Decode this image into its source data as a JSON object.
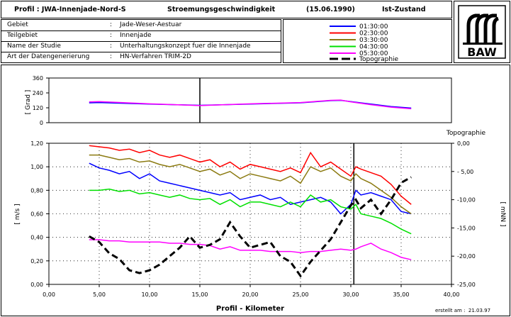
{
  "header": {
    "profil": "Profil : JWA-Innenjade-Nord-S",
    "title": "Stroemungsgeschwindigkeit",
    "date": "(15.06.1990)",
    "state": "Ist-Zustand"
  },
  "info": {
    "rows": [
      {
        "label": "Gebiet",
        "value": "Jade-Weser-Aestuar"
      },
      {
        "label": "Teilgebiet",
        "value": "Innenjade"
      },
      {
        "label": "Name der Studie",
        "value": "Unterhaltungskonzept fuer die Innenjade"
      },
      {
        "label": "Art der Datengenerierung",
        "value": "HN-Verfahren TRIM-2D"
      }
    ],
    "sep": ":"
  },
  "logo": {
    "text": "BAW"
  },
  "footer": {
    "created": "erstellt am :  21.03.97"
  },
  "colors": {
    "s0130": "#0000ff",
    "s0230": "#ff0000",
    "s0330": "#8b7a10",
    "s0430": "#00e000",
    "s0530": "#ff00ff",
    "topo": "#000000"
  },
  "chart_data": [
    {
      "type": "line",
      "id": "direction",
      "ylabel": "[ Grad ]",
      "ylim": [
        0,
        360
      ],
      "yticks": [
        "0",
        "120",
        "240",
        "360"
      ],
      "xlim": [
        0,
        40
      ],
      "series": [
        {
          "name": "01:30:00",
          "x": [
            4,
            5,
            10,
            15,
            20,
            25,
            28,
            29,
            30,
            32,
            34,
            36
          ],
          "y": [
            160,
            162,
            150,
            140,
            150,
            160,
            178,
            180,
            170,
            150,
            130,
            118
          ]
        },
        {
          "name": "05:30:00",
          "x": [
            4,
            5,
            10,
            15,
            20,
            25,
            28,
            29,
            30,
            32,
            34,
            36
          ],
          "y": [
            168,
            170,
            152,
            138,
            152,
            162,
            180,
            182,
            168,
            145,
            125,
            112
          ]
        }
      ]
    },
    {
      "type": "line",
      "id": "velocity",
      "xlabel": "Profil - Kilometer",
      "ylabel": "[ m/s ]",
      "ylabel_right": "[ mNN ]",
      "right_title": "Topographie",
      "xlim": [
        0,
        40
      ],
      "ylim": [
        0,
        1.2
      ],
      "ylim_right": [
        -25,
        0
      ],
      "xticks": [
        "0,00",
        "5,00",
        "10,00",
        "15,00",
        "20,00",
        "25,00",
        "30,00",
        "35,00",
        "40,00"
      ],
      "yticks": [
        "0,00",
        "0,20",
        "0,40",
        "0,60",
        "0,80",
        "1,00",
        "1,20"
      ],
      "yticks_right": [
        "-25,00",
        "-20,00",
        "-15,00",
        "-10,00",
        "- 5,00",
        "0,00"
      ],
      "legend": {
        "position": "top-right"
      },
      "series": [
        {
          "name": "01:30:00",
          "x": [
            4,
            5,
            6,
            7,
            8,
            9,
            10,
            11,
            12,
            13,
            14,
            15,
            16,
            17,
            18,
            19,
            20,
            21,
            22,
            23,
            24,
            25,
            26,
            27,
            28,
            29,
            30,
            30.5,
            31,
            32,
            33,
            34,
            35,
            36
          ],
          "y": [
            1.03,
            0.99,
            0.97,
            0.94,
            0.96,
            0.9,
            0.94,
            0.88,
            0.86,
            0.84,
            0.82,
            0.8,
            0.78,
            0.76,
            0.78,
            0.72,
            0.74,
            0.76,
            0.72,
            0.74,
            0.68,
            0.7,
            0.72,
            0.74,
            0.7,
            0.6,
            0.68,
            0.8,
            0.76,
            0.78,
            0.75,
            0.72,
            0.62,
            0.6
          ]
        },
        {
          "name": "02:30:00",
          "x": [
            4,
            5,
            6,
            7,
            8,
            9,
            10,
            11,
            12,
            13,
            14,
            15,
            16,
            17,
            18,
            19,
            20,
            21,
            22,
            23,
            24,
            25,
            26,
            27,
            28,
            29,
            30,
            30.5,
            31,
            32,
            33,
            34,
            35,
            36
          ],
          "y": [
            1.18,
            1.17,
            1.16,
            1.14,
            1.15,
            1.12,
            1.14,
            1.1,
            1.08,
            1.1,
            1.07,
            1.04,
            1.06,
            1.0,
            1.04,
            0.98,
            1.02,
            1.0,
            0.98,
            0.96,
            0.99,
            0.95,
            1.12,
            1.0,
            1.04,
            0.98,
            0.92,
            1.0,
            0.98,
            0.95,
            0.92,
            0.85,
            0.75,
            0.68
          ]
        },
        {
          "name": "03:30:00",
          "x": [
            4,
            5,
            6,
            7,
            8,
            9,
            10,
            11,
            12,
            13,
            14,
            15,
            16,
            17,
            18,
            19,
            20,
            21,
            22,
            23,
            24,
            25,
            26,
            27,
            28,
            29,
            30,
            30.5,
            31,
            32,
            33,
            34,
            35,
            36
          ],
          "y": [
            1.1,
            1.1,
            1.08,
            1.06,
            1.07,
            1.04,
            1.05,
            1.02,
            1.0,
            1.02,
            0.99,
            0.96,
            0.98,
            0.93,
            0.96,
            0.9,
            0.94,
            0.92,
            0.9,
            0.88,
            0.92,
            0.86,
            1.0,
            0.96,
            0.99,
            0.92,
            0.88,
            0.94,
            0.9,
            0.86,
            0.8,
            0.74,
            0.66,
            0.6
          ]
        },
        {
          "name": "04:30:00",
          "x": [
            4,
            5,
            6,
            7,
            8,
            9,
            10,
            11,
            12,
            13,
            14,
            15,
            16,
            17,
            18,
            19,
            20,
            21,
            22,
            23,
            24,
            25,
            26,
            27,
            28,
            29,
            30,
            30.5,
            31,
            32,
            33,
            34,
            35,
            36
          ],
          "y": [
            0.8,
            0.8,
            0.81,
            0.79,
            0.8,
            0.77,
            0.78,
            0.76,
            0.74,
            0.76,
            0.73,
            0.72,
            0.73,
            0.68,
            0.72,
            0.66,
            0.7,
            0.7,
            0.68,
            0.66,
            0.7,
            0.66,
            0.76,
            0.7,
            0.72,
            0.66,
            0.64,
            0.68,
            0.6,
            0.58,
            0.56,
            0.52,
            0.47,
            0.43
          ]
        },
        {
          "name": "05:30:00",
          "x": [
            4,
            5,
            6,
            7,
            8,
            9,
            10,
            11,
            12,
            13,
            14,
            15,
            16,
            17,
            18,
            19,
            20,
            21,
            22,
            23,
            24,
            25,
            26,
            27,
            28,
            29,
            30,
            30.5,
            31,
            32,
            33,
            34,
            35,
            36
          ],
          "y": [
            0.38,
            0.38,
            0.37,
            0.37,
            0.36,
            0.36,
            0.36,
            0.36,
            0.35,
            0.35,
            0.34,
            0.34,
            0.33,
            0.3,
            0.32,
            0.29,
            0.29,
            0.29,
            0.28,
            0.28,
            0.28,
            0.27,
            0.28,
            0.28,
            0.29,
            0.3,
            0.29,
            0.3,
            0.32,
            0.35,
            0.3,
            0.27,
            0.23,
            0.21
          ]
        },
        {
          "name": "Topographie",
          "axis": "right",
          "x": [
            4,
            5,
            6,
            7,
            8,
            9,
            10,
            11,
            12,
            13,
            14,
            15,
            16,
            17,
            18,
            19,
            20,
            21,
            22,
            23,
            24,
            25,
            26,
            27,
            28,
            29,
            30,
            30.5,
            31,
            32,
            33,
            34,
            35,
            36
          ],
          "y": [
            -16.5,
            -17.5,
            -19.5,
            -20.5,
            -22.5,
            -23,
            -22.5,
            -21.5,
            -20,
            -18.5,
            -16.5,
            -18.5,
            -18,
            -17,
            -14,
            -16.5,
            -18.5,
            -18,
            -17.5,
            -20,
            -21,
            -23.5,
            -21,
            -19,
            -17,
            -14,
            -11,
            -10,
            -11.5,
            -10,
            -12.5,
            -10,
            -7,
            -6
          ]
        }
      ]
    }
  ]
}
